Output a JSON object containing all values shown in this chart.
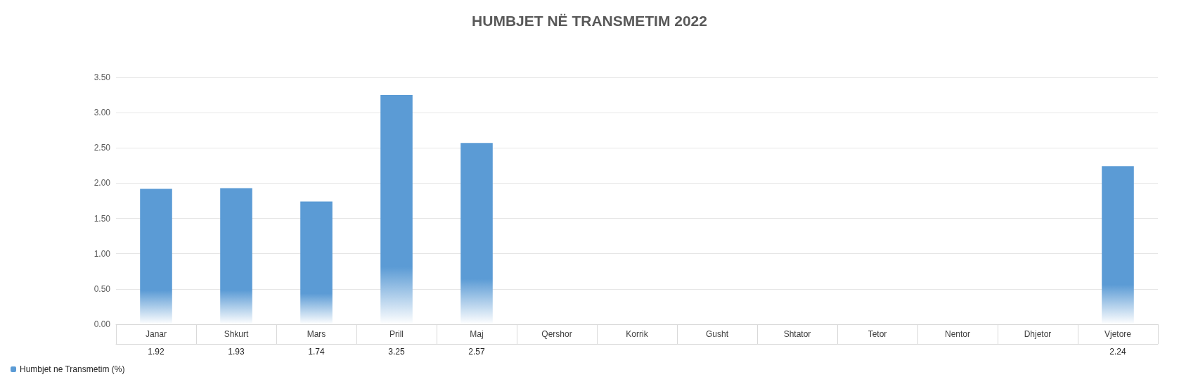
{
  "chart_data": {
    "type": "bar",
    "title": "HUMBJET NË TRANSMETIM 2022",
    "categories": [
      "Janar",
      "Shkurt",
      "Mars",
      "Prill",
      "Maj",
      "Qershor",
      "Korrik",
      "Gusht",
      "Shtator",
      "Tetor",
      "Nentor",
      "Dhjetor",
      "Vjetore"
    ],
    "series": [
      {
        "name": "Humbjet ne Transmetim (%)",
        "color": "#5b9bd5",
        "values": [
          1.92,
          1.93,
          1.74,
          3.25,
          2.57,
          null,
          null,
          null,
          null,
          null,
          null,
          null,
          2.24
        ]
      }
    ],
    "ylim": [
      0,
      3.5
    ],
    "yticks": [
      {
        "value": 0,
        "label": "0.00"
      },
      {
        "value": 0.5,
        "label": "0.50"
      },
      {
        "value": 1,
        "label": "1.00"
      },
      {
        "value": 1.5,
        "label": "1.50"
      },
      {
        "value": 2,
        "label": "2.00"
      },
      {
        "value": 2.5,
        "label": "2.50"
      },
      {
        "value": 3,
        "label": "3.00"
      },
      {
        "value": 3.5,
        "label": "3.50"
      }
    ],
    "grid": true,
    "legend": "bottom left",
    "data_labels": true
  }
}
